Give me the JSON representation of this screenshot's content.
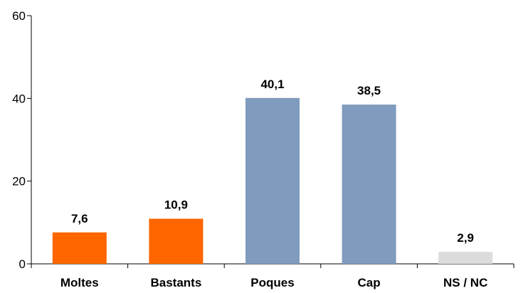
{
  "chart_data": {
    "type": "bar",
    "categories": [
      "Moltes",
      "Bastants",
      "Poques",
      "Cap",
      "NS / NC"
    ],
    "values": [
      7.6,
      10.9,
      40.1,
      38.5,
      2.9
    ],
    "value_labels": [
      "7,6",
      "10,9",
      "40,1",
      "38,5",
      "2,9"
    ],
    "bar_colors": [
      "#ff6600",
      "#ff6600",
      "#7f9bbd",
      "#7f9bbd",
      "#dcdcdc"
    ],
    "ylim": [
      0,
      60
    ],
    "yticks": [
      0,
      20,
      40,
      60
    ],
    "ytick_labels": [
      "0",
      "20",
      "40",
      "60"
    ],
    "title": "",
    "xlabel": "",
    "ylabel": "",
    "grid": false,
    "legend": "none"
  }
}
